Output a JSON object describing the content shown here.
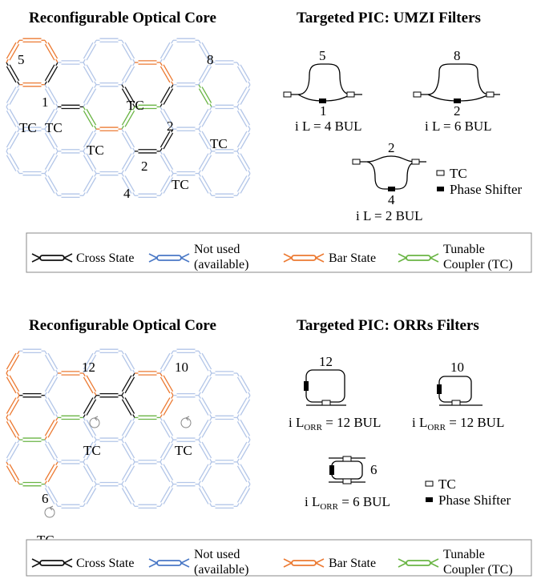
{
  "colors": {
    "unused": "#b3c6e8",
    "unused_dark": "#4a78c6",
    "cross": "#111111",
    "bar": "#ec7a32",
    "tc": "#6ab544"
  },
  "top": {
    "core_title": "Reconfigurable Optical Core",
    "pic_title": "Targeted PIC: UMZI Filters",
    "core_labels": {
      "n5": "5",
      "n8": "8",
      "n1": "1",
      "n2a": "2",
      "n2b": "2",
      "n4": "4",
      "tc_a": "TC",
      "tc_b": "TC",
      "tc_c": "TC",
      "tc_d": "TC",
      "tc_e": "TC",
      "tc_f": "TC"
    },
    "filters": [
      {
        "top": "5",
        "bottom": "1",
        "caption_pre": "i L = 4 BUL"
      },
      {
        "top": "8",
        "bottom": "2",
        "caption_pre": "i L = 6 BUL"
      },
      {
        "top": "2",
        "bottom": "4",
        "caption_pre": "i L = 2 BUL"
      }
    ],
    "key_tc": "TC",
    "key_ps": "Phase Shifter"
  },
  "bottom": {
    "core_title": "Reconfigurable Optical Core",
    "pic_title": "Targeted PIC: ORRs Filters",
    "core_labels": {
      "n12": "12",
      "n10": "10",
      "n6": "6",
      "tc_a": "TC",
      "tc_b": "TC",
      "tc_c": "TC"
    },
    "filters": [
      {
        "num": "12",
        "pre": "i L",
        "sub": "ORR",
        "post": " = 12 BUL"
      },
      {
        "num": "10",
        "pre": "i L",
        "sub": "ORR",
        "post": " = 12 BUL"
      },
      {
        "num": "6",
        "pre": "i L",
        "sub": "ORR",
        "post": " = 6 BUL"
      }
    ],
    "key_tc": "TC",
    "key_ps": "Phase Shifter"
  },
  "legend": {
    "cross": "Cross State",
    "unused_l1": "Not used",
    "unused_l2": "(available)",
    "bar": "Bar State",
    "tc_l1": "Tunable",
    "tc_l2": "Coupler (TC)"
  }
}
